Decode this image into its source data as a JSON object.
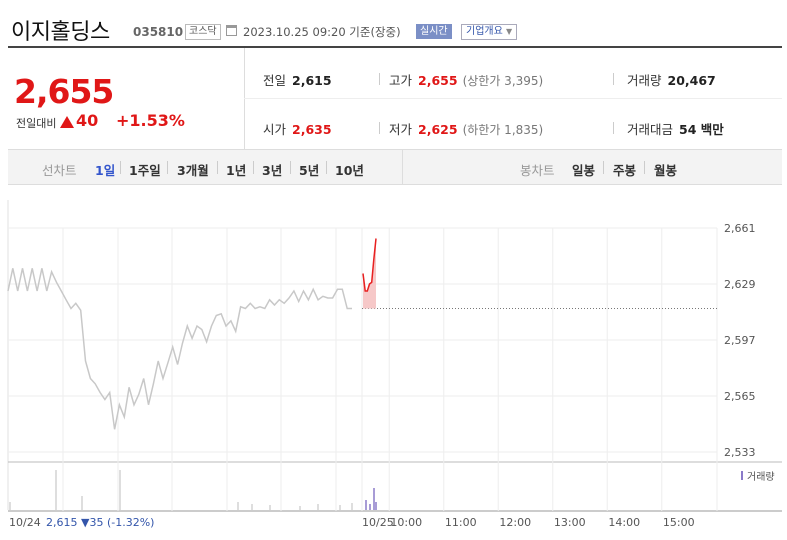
{
  "header": {
    "name": "이지홀딩스",
    "code": "035810",
    "market": "코스닥",
    "datetime": "2023.10.25 09:20  기준(장중)",
    "realtime_label": "실시간",
    "company_label": "기업개요"
  },
  "quote": {
    "price": "2,655",
    "change_label": "전일대비",
    "change": "40",
    "change_pct": "+1.53%",
    "up_color": "#e01717"
  },
  "stats": {
    "prev_close": {
      "label": "전일",
      "value": "2,615"
    },
    "high": {
      "label": "고가",
      "value": "2,655",
      "sub": "(상한가 3,395)"
    },
    "volume": {
      "label": "거래량",
      "value": "20,467"
    },
    "open": {
      "label": "시가",
      "value": "2,635"
    },
    "low": {
      "label": "저가",
      "value": "2,625",
      "sub": "(하한가 1,835)"
    },
    "turnover": {
      "label": "거래대금",
      "value": "54 백만"
    }
  },
  "tabs": {
    "line_label": "선차트",
    "line": [
      "1일",
      "1주일",
      "3개월",
      "1년",
      "3년",
      "5년",
      "10년"
    ],
    "active": "1일",
    "candle_label": "봉차트",
    "candle": [
      "일봉",
      "주봉",
      "월봉"
    ]
  },
  "chart_data": {
    "type": "line",
    "y_ticks": [
      "2,661",
      "2,629",
      "2,597",
      "2,565",
      "2,533"
    ],
    "ylim": [
      2533,
      2661
    ],
    "x_ticks": [
      "10/25",
      "10:00",
      "11:00",
      "12:00",
      "13:00",
      "14:00",
      "15:00"
    ],
    "prev_day_label": "10/24",
    "prev_day_summary": "2,615 ▼35 (-1.32%)",
    "volume_label": "거래량",
    "baseline": 2615,
    "series": [
      {
        "values": [
          2625,
          2638,
          2625,
          2638,
          2625,
          2638,
          2625,
          2638,
          2625,
          2636,
          2630,
          2625,
          2620,
          2615,
          2618,
          2614,
          2585,
          2575,
          2572,
          2567,
          2563,
          2567,
          2546,
          2560,
          2553,
          2570,
          2560,
          2566,
          2575,
          2560,
          2572,
          2585,
          2575,
          2584,
          2593,
          2583,
          2595,
          2605,
          2598,
          2605,
          2603,
          2596,
          2605,
          2611,
          2612,
          2605,
          2608,
          2602,
          2616,
          2615,
          2618,
          2615,
          2616,
          2615,
          2620,
          2617,
          2620,
          2618,
          2621,
          2625,
          2619,
          2625,
          2620,
          2626,
          2620,
          2622,
          2621,
          2621,
          2626,
          2626,
          2615,
          2615
        ]
      },
      {
        "values": [
          2635,
          2625,
          2625,
          2629,
          2630,
          2643,
          2655
        ]
      }
    ],
    "colors": {
      "prev_day": "#c8c8c8",
      "today": "#e82020",
      "area": "#f6c8c8",
      "volume": "#bdbdbd",
      "volume_today": "#8a7ac9"
    }
  }
}
